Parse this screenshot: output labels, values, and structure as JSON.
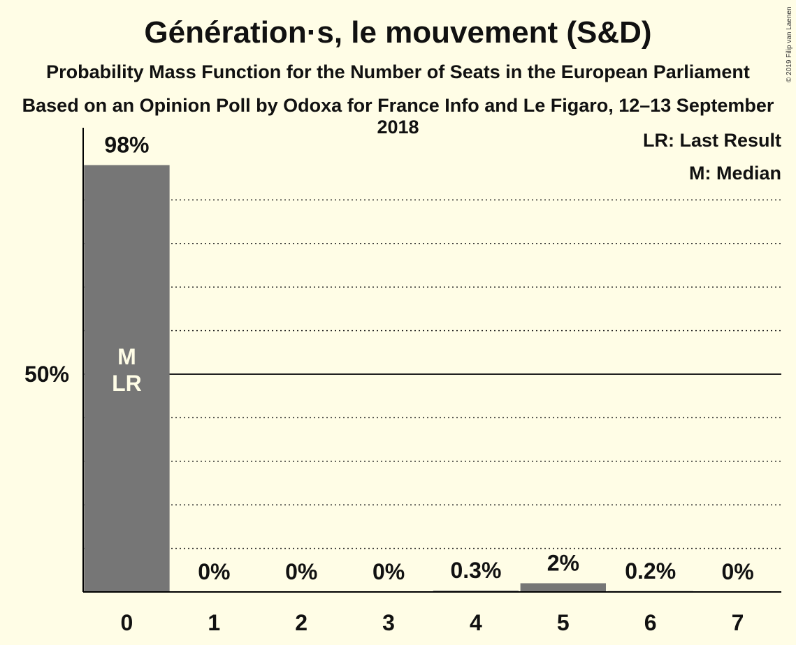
{
  "title": "Génération·s, le mouvement (S&D)",
  "subtitle": "Probability Mass Function for the Number of Seats in the European Parliament",
  "subtitle2": "Based on an Opinion Poll by Odoxa for France Info and Le Figaro, 12–13 September 2018",
  "copyright": "© 2019 Filip van Laenen",
  "legend": {
    "last_result": "LR: Last Result",
    "median": "M: Median"
  },
  "colors": {
    "background": "#FFFDE6",
    "bar": "#767676",
    "bar_text": "#FFFDE6",
    "text": "#111111"
  },
  "chart_data": {
    "type": "bar",
    "categories": [
      "0",
      "1",
      "2",
      "3",
      "4",
      "5",
      "6",
      "7"
    ],
    "values": [
      98,
      0,
      0,
      0,
      0.3,
      2,
      0.2,
      0
    ],
    "value_labels": [
      "98%",
      "0%",
      "0%",
      "0%",
      "0.3%",
      "2%",
      "0.2%",
      "0%"
    ],
    "ylim": [
      0,
      100
    ],
    "ytick_values": [
      50
    ],
    "ytick_labels": [
      "50%"
    ],
    "grid": true,
    "grid_step": 10,
    "median_category": "0",
    "last_result_category": "0",
    "bar_marks": {
      "median": "M",
      "last_result": "LR"
    },
    "legend_position": "top-right"
  }
}
